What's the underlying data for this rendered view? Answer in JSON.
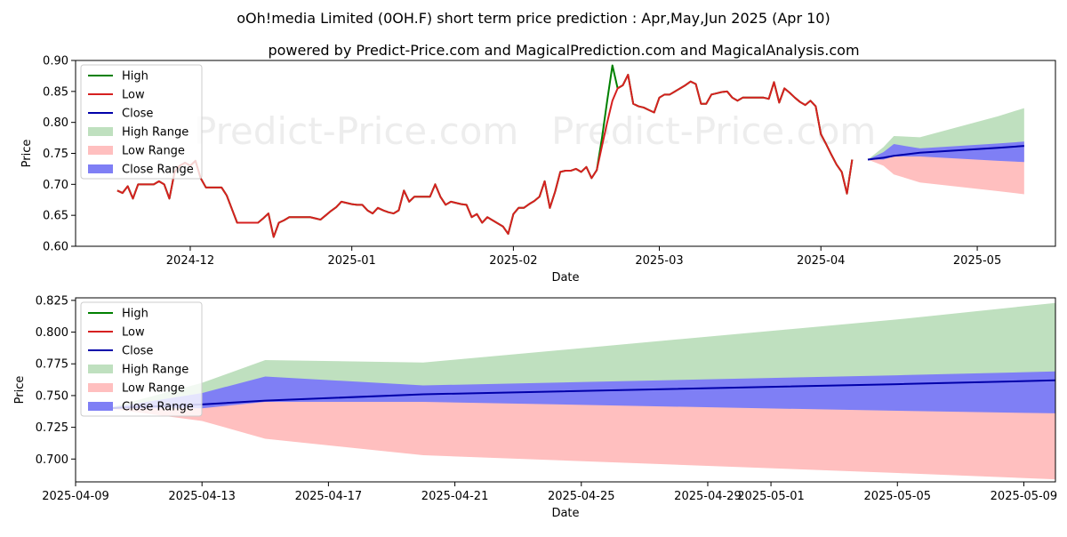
{
  "title": "oOh!media Limited (0OH.F) short term price prediction : Apr,May,Jun 2025 (Apr 10)",
  "subtitle": "powered by Predict-Price.com and MagicalPrediction.com and MagicalAnalysis.com",
  "watermark": "Predict-Price.com",
  "colors": {
    "high": "#008000",
    "low": "#d62020",
    "close": "#0000aa",
    "high_range": "#bfe0bf",
    "low_range": "#ffbfbf",
    "close_range": "#7f7ff5"
  },
  "legend": [
    "High",
    "Low",
    "Close",
    "High Range",
    "Low Range",
    "Close Range"
  ],
  "chart_data": [
    {
      "type": "line",
      "xlabel": "Date",
      "ylabel": "Price",
      "xlim": [
        "2024-11-09",
        "2025-05-16"
      ],
      "ylim": [
        0.6,
        0.9
      ],
      "y_ticks": [
        "0.60",
        "0.65",
        "0.70",
        "0.75",
        "0.80",
        "0.85",
        "0.90"
      ],
      "x_ticks": [
        {
          "date": "2024-12-01",
          "label": "2024-12"
        },
        {
          "date": "2025-01-01",
          "label": "2025-01"
        },
        {
          "date": "2025-02-01",
          "label": "2025-02"
        },
        {
          "date": "2025-03-01",
          "label": "2025-03"
        },
        {
          "date": "2025-04-01",
          "label": "2025-04"
        },
        {
          "date": "2025-05-01",
          "label": "2025-05"
        }
      ],
      "history_start": "2024-11-17",
      "low_values": [
        0.69,
        0.686,
        0.697,
        0.677,
        0.7,
        0.7,
        0.7,
        0.7,
        0.705,
        0.7,
        0.677,
        0.72,
        0.73,
        0.735,
        0.73,
        0.738,
        0.71,
        0.695,
        0.695,
        0.695,
        0.695,
        0.682,
        0.66,
        0.638,
        0.638,
        0.638,
        0.638,
        0.638,
        0.645,
        0.653,
        0.615,
        0.638,
        0.642,
        0.647,
        0.647,
        0.647,
        0.647,
        0.647,
        0.645,
        0.643,
        0.65,
        0.657,
        0.663,
        0.672,
        0.67,
        0.668,
        0.667,
        0.667,
        0.658,
        0.653,
        0.662,
        0.658,
        0.655,
        0.653,
        0.658,
        0.69,
        0.672,
        0.68,
        0.68,
        0.68,
        0.68,
        0.7,
        0.68,
        0.667,
        0.672,
        0.67,
        0.668,
        0.667,
        0.647,
        0.652,
        0.638,
        0.647,
        0.642,
        0.637,
        0.632,
        0.62,
        0.652,
        0.662,
        0.662,
        0.668,
        0.673,
        0.68,
        0.705,
        0.662,
        0.688,
        0.72,
        0.722,
        0.722,
        0.725,
        0.72,
        0.728,
        0.71,
        0.723,
        0.762,
        0.8,
        0.835,
        0.855,
        0.86,
        0.877,
        0.83,
        0.826,
        0.824,
        0.82,
        0.816,
        0.84,
        0.845,
        0.845,
        0.85,
        0.855,
        0.86,
        0.866,
        0.862,
        0.83,
        0.83,
        0.845,
        0.847,
        0.849,
        0.85,
        0.84,
        0.835,
        0.84,
        0.84,
        0.84,
        0.84,
        0.84,
        0.838,
        0.865,
        0.832,
        0.855,
        0.848,
        0.84,
        0.833,
        0.828,
        0.835,
        0.826,
        0.781,
        0.765,
        0.748,
        0.732,
        0.72,
        0.685,
        0.74
      ],
      "high_values": [
        0.69,
        0.686,
        0.697,
        0.677,
        0.7,
        0.7,
        0.7,
        0.7,
        0.705,
        0.7,
        0.677,
        0.72,
        0.73,
        0.735,
        0.73,
        0.738,
        0.71,
        0.695,
        0.695,
        0.695,
        0.695,
        0.682,
        0.66,
        0.638,
        0.638,
        0.638,
        0.638,
        0.638,
        0.645,
        0.653,
        0.615,
        0.638,
        0.642,
        0.647,
        0.647,
        0.647,
        0.647,
        0.647,
        0.645,
        0.643,
        0.65,
        0.657,
        0.663,
        0.672,
        0.67,
        0.668,
        0.667,
        0.667,
        0.658,
        0.653,
        0.662,
        0.658,
        0.655,
        0.653,
        0.658,
        0.69,
        0.672,
        0.68,
        0.68,
        0.68,
        0.68,
        0.7,
        0.68,
        0.667,
        0.672,
        0.67,
        0.668,
        0.667,
        0.647,
        0.652,
        0.638,
        0.647,
        0.642,
        0.637,
        0.632,
        0.62,
        0.652,
        0.662,
        0.662,
        0.668,
        0.673,
        0.68,
        0.705,
        0.662,
        0.688,
        0.72,
        0.722,
        0.722,
        0.725,
        0.72,
        0.728,
        0.71,
        0.723,
        0.775,
        0.835,
        0.892,
        0.855,
        0.86,
        0.877,
        0.83,
        0.826,
        0.824,
        0.82,
        0.816,
        0.84,
        0.845,
        0.845,
        0.85,
        0.855,
        0.86,
        0.866,
        0.862,
        0.83,
        0.83,
        0.845,
        0.847,
        0.849,
        0.85,
        0.84,
        0.835,
        0.84,
        0.84,
        0.84,
        0.84,
        0.84,
        0.838,
        0.865,
        0.832,
        0.855,
        0.848,
        0.84,
        0.833,
        0.828,
        0.835,
        0.826,
        0.781,
        0.765,
        0.748,
        0.732,
        0.72,
        0.685,
        0.74
      ],
      "forecast_dates": [
        "2025-04-10",
        "2025-04-13",
        "2025-04-15",
        "2025-04-20",
        "2025-05-05",
        "2025-05-10"
      ],
      "close_forecast": [
        0.74,
        0.743,
        0.746,
        0.751,
        0.759,
        0.762
      ],
      "high_range": {
        "upper": [
          0.74,
          0.76,
          0.778,
          0.776,
          0.81,
          0.823
        ],
        "lower": [
          0.74,
          0.743,
          0.746,
          0.751,
          0.759,
          0.762
        ]
      },
      "low_range": {
        "upper": [
          0.74,
          0.743,
          0.746,
          0.751,
          0.759,
          0.762
        ],
        "lower": [
          0.74,
          0.73,
          0.716,
          0.703,
          0.689,
          0.684
        ]
      },
      "close_range": {
        "upper": [
          0.74,
          0.752,
          0.765,
          0.758,
          0.766,
          0.769
        ],
        "lower": [
          0.74,
          0.74,
          0.745,
          0.745,
          0.738,
          0.736
        ]
      }
    },
    {
      "type": "area",
      "xlabel": "Date",
      "ylabel": "Price",
      "xlim": [
        "2025-04-09",
        "2025-05-10.75"
      ],
      "ylim": [
        0.682,
        0.827
      ],
      "y_ticks": [
        "0.700",
        "0.725",
        "0.750",
        "0.775",
        "0.800",
        "0.825"
      ],
      "x_ticks": [
        {
          "date": "2025-04-09",
          "label": "2025-04-09"
        },
        {
          "date": "2025-04-13",
          "label": "2025-04-13"
        },
        {
          "date": "2025-04-17",
          "label": "2025-04-17"
        },
        {
          "date": "2025-04-21",
          "label": "2025-04-21"
        },
        {
          "date": "2025-04-25",
          "label": "2025-04-25"
        },
        {
          "date": "2025-04-29",
          "label": "2025-04-29"
        },
        {
          "date": "2025-05-01",
          "label": "2025-05-01"
        },
        {
          "date": "2025-05-05",
          "label": "2025-05-05"
        },
        {
          "date": "2025-05-09",
          "label": "2025-05-09"
        }
      ]
    }
  ]
}
